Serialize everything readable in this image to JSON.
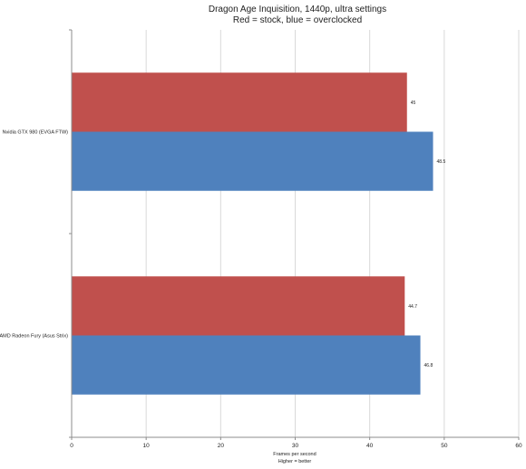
{
  "chart_data": {
    "type": "bar",
    "orientation": "horizontal",
    "title_line1": "Dragon Age Inquisition, 1440p, ultra settings",
    "title_line2": "Red = stock, blue = overclocked",
    "xlabel_line1": "Frames per second",
    "xlabel_line2": "Higher = better",
    "categories": [
      "Nvidia GTX 980 (EVGA FTW)",
      "AMD Radeon Fury (Asus Strix)"
    ],
    "series": [
      {
        "color": "#c0504d",
        "values": [
          45,
          44.7
        ]
      },
      {
        "color": "#4f81bd",
        "values": [
          48.5,
          46.8
        ]
      }
    ],
    "data_labels": [
      [
        "45",
        "44.7"
      ],
      [
        "48.5",
        "46.8"
      ]
    ],
    "xlim": [
      0,
      60
    ],
    "xticks": [
      0,
      10,
      20,
      30,
      40,
      50,
      60
    ],
    "grid": true,
    "legend": "none"
  }
}
